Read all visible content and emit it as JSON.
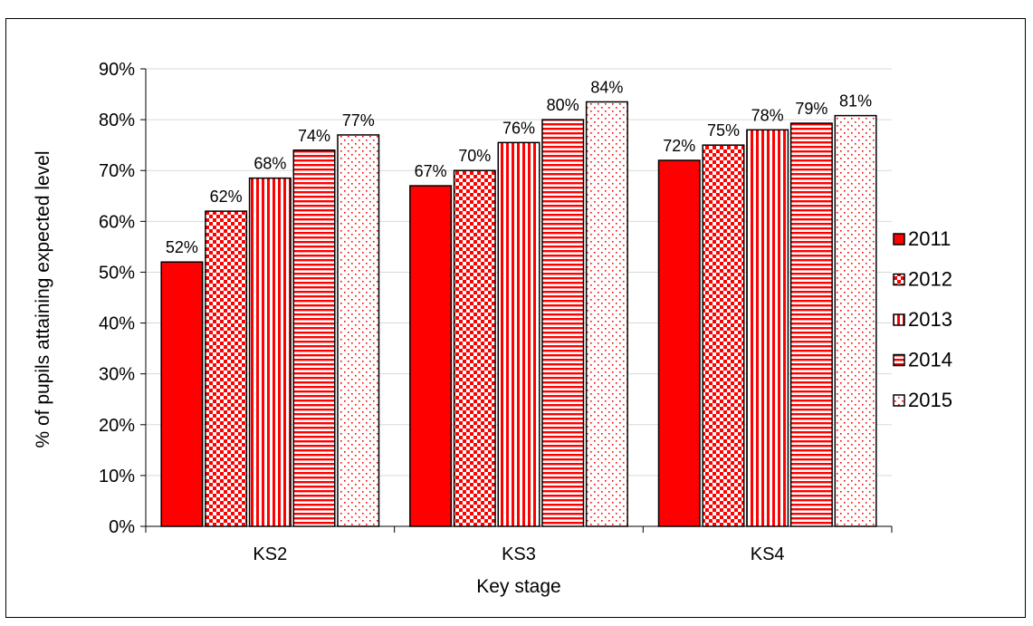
{
  "chart_data": {
    "type": "bar",
    "categories": [
      "KS2",
      "KS3",
      "KS4"
    ],
    "series": [
      {
        "name": "2011",
        "values": [
          52,
          67,
          72
        ],
        "labels": [
          "52%",
          "67%",
          "72%"
        ]
      },
      {
        "name": "2012",
        "values": [
          62,
          70,
          75
        ],
        "labels": [
          "62%",
          "70%",
          "75%"
        ]
      },
      {
        "name": "2013",
        "values": [
          68.5,
          75.5,
          78
        ],
        "labels": [
          "68%",
          "76%",
          "78%"
        ]
      },
      {
        "name": "2014",
        "values": [
          74,
          80,
          79.3
        ],
        "labels": [
          "74%",
          "80%",
          "79%"
        ]
      },
      {
        "name": "2015",
        "values": [
          77,
          83.5,
          80.8
        ],
        "labels": [
          "77%",
          "84%",
          "81%"
        ]
      }
    ],
    "xlabel": "Key stage",
    "ylabel": "% of pupils attaining expected level",
    "ylim": [
      0,
      90
    ],
    "yticks": [
      "0%",
      "10%",
      "20%",
      "30%",
      "40%",
      "50%",
      "60%",
      "70%",
      "80%",
      "90%"
    ],
    "grid": true,
    "legend_position": "right",
    "colors": {
      "primary": "#ff0000",
      "stroke": "#000000",
      "grid": "#d9d9d9"
    },
    "patterns": [
      "solid",
      "checkerboard",
      "vertical-stripes",
      "horizontal-stripes",
      "dots"
    ]
  }
}
